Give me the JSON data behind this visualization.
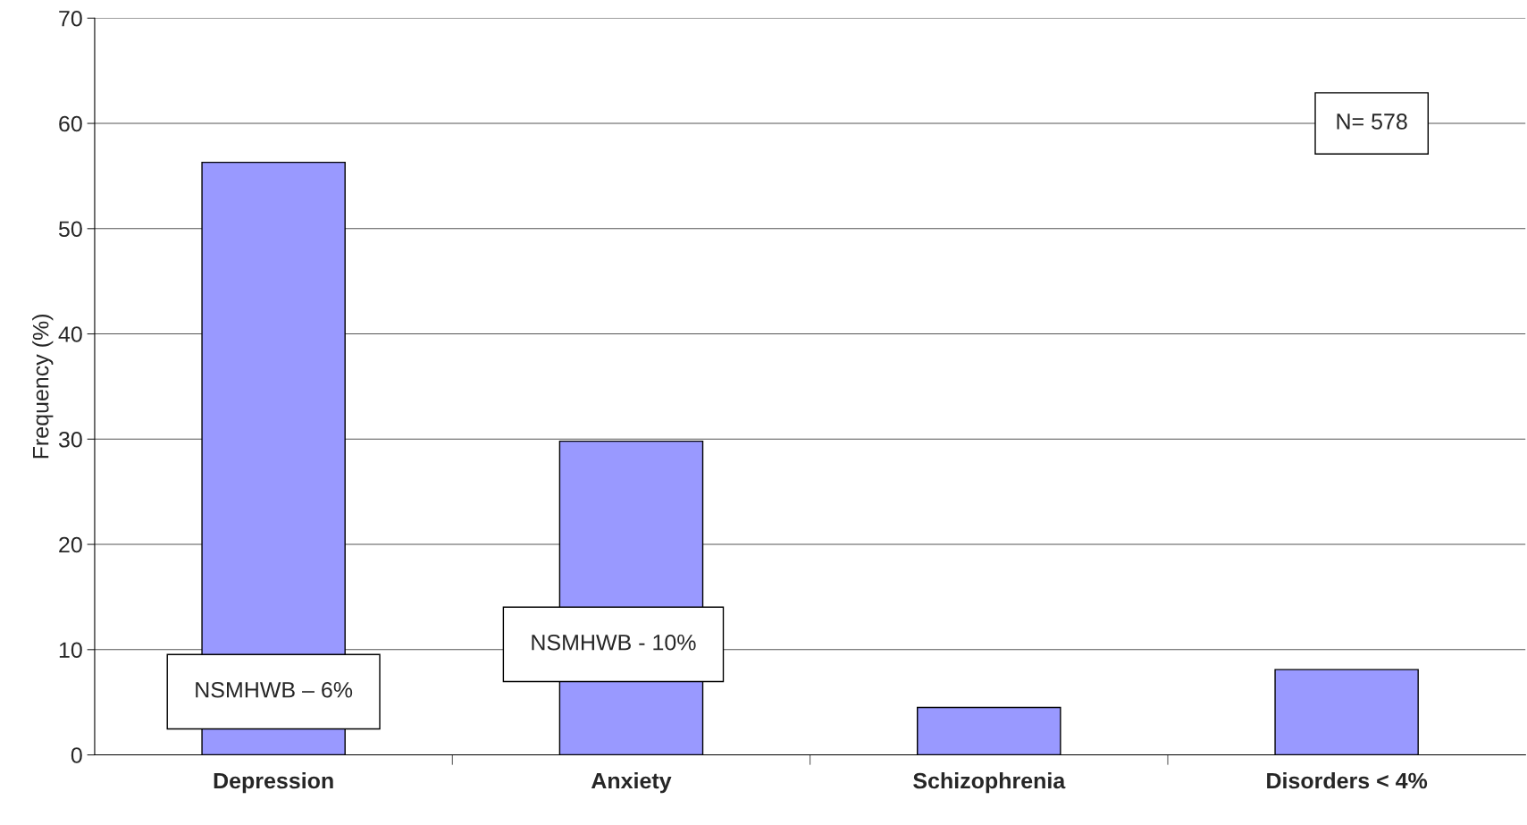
{
  "chart_data": {
    "type": "bar",
    "ylabel": "Frequency (%)",
    "categories": [
      "Depression",
      "Anxiety",
      "Schizophrenia",
      "Disorders < 4%"
    ],
    "values": [
      56.3,
      29.8,
      4.5,
      8.1
    ],
    "color": "#9999ff",
    "ylim": [
      0,
      70
    ],
    "yticks": [
      0,
      10,
      20,
      30,
      40,
      50,
      60,
      70
    ],
    "grid": "y",
    "annotations": [
      "NSMHWB – 6%",
      "NSMHWB - 10%",
      "N= 578"
    ]
  }
}
